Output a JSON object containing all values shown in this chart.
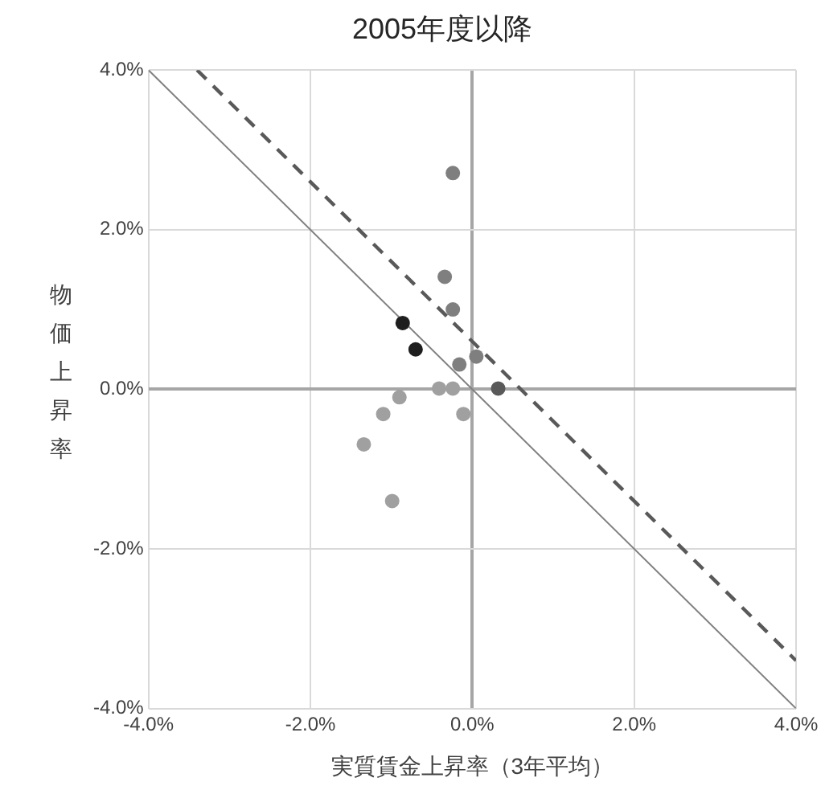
{
  "chart_data": {
    "type": "scatter",
    "title": "2005年度以降",
    "xlabel": "実質賃金上昇率（3年平均）",
    "ylabel": "物価上昇率",
    "xlim": [
      -4,
      4
    ],
    "ylim": [
      -4,
      4
    ],
    "xticks": [
      {
        "value": -4,
        "label": "-4.0%"
      },
      {
        "value": -2,
        "label": "-2.0%"
      },
      {
        "value": 0,
        "label": "0.0%"
      },
      {
        "value": 2,
        "label": "2.0%"
      },
      {
        "value": 4,
        "label": "4.0%"
      }
    ],
    "yticks": [
      {
        "value": -4,
        "label": "-4.0%"
      },
      {
        "value": -2,
        "label": "-2.0%"
      },
      {
        "value": 0,
        "label": "0.0%"
      },
      {
        "value": 2,
        "label": "2.0%"
      },
      {
        "value": 4,
        "label": "4.0%"
      }
    ],
    "grid": true,
    "legend": false,
    "marker": "circle",
    "series": [
      {
        "x": [
          -0.24,
          -0.34,
          -0.24,
          -0.86,
          -0.7,
          -0.16,
          0.05,
          -0.41,
          -0.24,
          0.32,
          -0.9,
          -1.1,
          -0.11,
          -1.34,
          -0.99
        ],
        "values": [
          2.71,
          1.41,
          1.0,
          0.83,
          0.5,
          0.31,
          0.41,
          0.01,
          0.01,
          0.01,
          -0.1,
          -0.31,
          -0.31,
          -0.69,
          -1.4
        ],
        "colors": [
          "#7f7f7f",
          "#7f7f7f",
          "#7f7f7f",
          "#1e1e1e",
          "#1e1e1e",
          "#7f7f7f",
          "#7f7f7f",
          "#a0a0a0",
          "#a0a0a0",
          "#595959",
          "#a0a0a0",
          "#a0a0a0",
          "#a0a0a0",
          "#a0a0a0",
          "#a0a0a0"
        ]
      },
      {
        "type": "line",
        "x": [
          -4,
          4
        ],
        "values": [
          4,
          -4
        ],
        "color": "#808080",
        "line_style": "solid",
        "marker": "none"
      },
      {
        "type": "line",
        "x": [
          -3.4,
          4
        ],
        "values": [
          4,
          -3.4
        ],
        "color": "#595959",
        "line_style": "dashed",
        "marker": "none"
      }
    ]
  }
}
